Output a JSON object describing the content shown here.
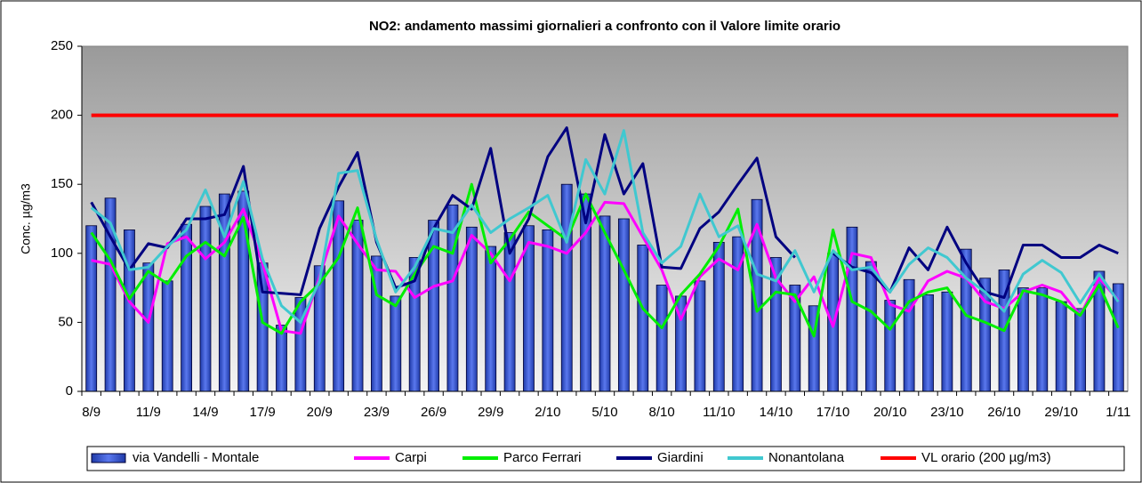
{
  "chart_data": {
    "type": "bar-line",
    "title": "NO2: andamento massimi giornalieri  a  confronto con il Valore limite orario",
    "y_label": "Conc. µg/m3",
    "categories": [
      "8/9",
      null,
      null,
      "11/9",
      null,
      null,
      "14/9",
      null,
      null,
      "17/9",
      null,
      null,
      "20/9",
      null,
      null,
      "23/9",
      null,
      null,
      "26/9",
      null,
      null,
      "29/9",
      null,
      null,
      "2/10",
      null,
      null,
      "5/10",
      null,
      null,
      "8/10",
      null,
      null,
      "11/10",
      null,
      null,
      "14/10",
      null,
      null,
      "17/10",
      null,
      null,
      "20/10",
      null,
      null,
      "23/10",
      null,
      null,
      "26/10",
      null,
      null,
      "29/10",
      null,
      null,
      "1/11"
    ],
    "ylim": [
      0,
      250
    ],
    "yticks": [
      0,
      50,
      100,
      150,
      200,
      250
    ],
    "series": [
      {
        "name": "via Vandelli - Montale",
        "kind": "bar",
        "color": "#3b5bd6",
        "values": [
          120,
          140,
          117,
          93,
          80,
          121,
          134,
          143,
          145,
          93,
          48,
          68,
          91,
          138,
          124,
          98,
          69,
          97,
          124,
          135,
          119,
          105,
          115,
          120,
          117,
          150,
          143,
          127,
          125,
          106,
          77,
          69,
          80,
          108,
          112,
          139,
          97,
          77,
          62,
          100,
          119,
          94,
          66,
          81,
          70,
          72,
          103,
          82,
          88,
          75,
          75,
          65,
          60,
          87,
          78
        ]
      },
      {
        "name": "Carpi",
        "kind": "line",
        "color": "#ff00ff",
        "values": [
          95,
          92,
          65,
          50,
          107,
          112,
          96,
          108,
          132,
          93,
          44,
          42,
          83,
          127,
          107,
          88,
          87,
          68,
          76,
          80,
          113,
          100,
          80,
          108,
          105,
          100,
          115,
          137,
          136,
          112,
          88,
          52,
          83,
          96,
          88,
          121,
          82,
          65,
          83,
          47,
          100,
          97,
          63,
          58,
          80,
          87,
          82,
          65,
          60,
          72,
          77,
          72,
          55,
          82,
          66
        ]
      },
      {
        "name": "Parco Ferrari",
        "kind": "line",
        "color": "#00ee00",
        "values": [
          115,
          95,
          67,
          87,
          78,
          98,
          108,
          98,
          126,
          50,
          42,
          65,
          78,
          97,
          133,
          70,
          62,
          85,
          105,
          100,
          150,
          93,
          110,
          130,
          120,
          110,
          143,
          115,
          88,
          60,
          46,
          70,
          85,
          105,
          132,
          58,
          72,
          70,
          40,
          117,
          65,
          58,
          45,
          65,
          72,
          75,
          55,
          50,
          44,
          73,
          70,
          65,
          55,
          77,
          46
        ]
      },
      {
        "name": "Giardini",
        "kind": "line",
        "color": "#000080",
        "values": [
          137,
          112,
          88,
          107,
          104,
          125,
          125,
          128,
          163,
          72,
          71,
          70,
          118,
          148,
          173,
          108,
          75,
          80,
          118,
          142,
          132,
          176,
          100,
          125,
          170,
          191,
          122,
          186,
          143,
          165,
          90,
          89,
          118,
          130,
          150,
          169,
          112,
          97,
          null,
          100,
          90,
          86,
          72,
          104,
          88,
          119,
          93,
          72,
          68,
          106,
          106,
          97,
          97,
          106,
          100
        ]
      },
      {
        "name": "Nonantolana",
        "kind": "line",
        "color": "#40c8d0",
        "values": [
          133,
          122,
          88,
          90,
          105,
          117,
          146,
          112,
          152,
          96,
          62,
          50,
          80,
          158,
          160,
          110,
          72,
          90,
          118,
          115,
          135,
          115,
          125,
          133,
          142,
          108,
          168,
          143,
          189,
          115,
          93,
          105,
          143,
          112,
          120,
          85,
          80,
          102,
          72,
          102,
          88,
          90,
          72,
          92,
          104,
          97,
          82,
          72,
          58,
          85,
          95,
          86,
          64,
          85,
          65
        ]
      },
      {
        "name": "VL orario (200 µg/m3)",
        "kind": "hline",
        "color": "#ff0000",
        "value": 200
      }
    ],
    "legend": "bottom"
  }
}
